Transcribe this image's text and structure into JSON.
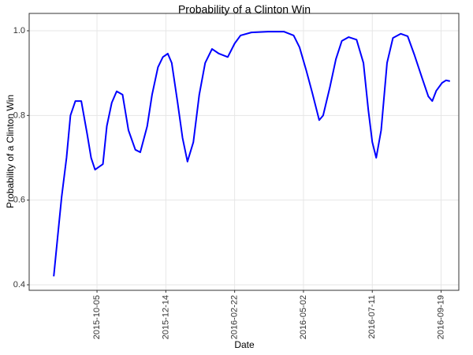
{
  "chart_data": {
    "type": "line",
    "title": "Probability of a Clinton Win",
    "x_label": "Date",
    "y_label": "Probability of a Clinton Win",
    "x": [
      "2015-08-22",
      "2015-08-26",
      "2015-08-30",
      "2015-09-04",
      "2015-09-08",
      "2015-09-13",
      "2015-09-19",
      "2015-09-25",
      "2015-09-29",
      "2015-10-03",
      "2015-10-11",
      "2015-10-15",
      "2015-10-20",
      "2015-10-25",
      "2015-10-31",
      "2015-11-06",
      "2015-11-13",
      "2015-11-18",
      "2015-11-25",
      "2015-11-30",
      "2015-12-06",
      "2015-12-11",
      "2015-12-16",
      "2015-12-20",
      "2015-12-26",
      "2015-12-31",
      "2016-01-05",
      "2016-01-11",
      "2016-01-17",
      "2016-01-23",
      "2016-01-30",
      "2016-02-06",
      "2016-02-15",
      "2016-02-22",
      "2016-02-28",
      "2016-03-10",
      "2016-03-27",
      "2016-04-12",
      "2016-04-22",
      "2016-04-28",
      "2016-05-05",
      "2016-05-11",
      "2016-05-18",
      "2016-05-22",
      "2016-05-29",
      "2016-06-04",
      "2016-06-10",
      "2016-06-17",
      "2016-06-25",
      "2016-07-02",
      "2016-07-07",
      "2016-07-11",
      "2016-07-15",
      "2016-07-20",
      "2016-07-26",
      "2016-08-01",
      "2016-08-09",
      "2016-08-16",
      "2016-08-23",
      "2016-08-31",
      "2016-09-06",
      "2016-09-10",
      "2016-09-14",
      "2016-09-20",
      "2016-09-24",
      "2016-09-28"
    ],
    "series": [
      {
        "name": "Probability of a Clinton Win",
        "color": "#0000ff",
        "values": [
          0.42,
          0.514,
          0.607,
          0.7,
          0.8,
          0.834,
          0.834,
          0.756,
          0.7,
          0.672,
          0.685,
          0.775,
          0.83,
          0.857,
          0.849,
          0.765,
          0.719,
          0.713,
          0.774,
          0.849,
          0.914,
          0.938,
          0.946,
          0.924,
          0.83,
          0.747,
          0.691,
          0.737,
          0.849,
          0.924,
          0.957,
          0.946,
          0.938,
          0.97,
          0.989,
          0.996,
          0.998,
          0.998,
          0.989,
          0.961,
          0.905,
          0.853,
          0.789,
          0.8,
          0.868,
          0.933,
          0.976,
          0.985,
          0.979,
          0.924,
          0.812,
          0.737,
          0.7,
          0.765,
          0.924,
          0.983,
          0.993,
          0.987,
          0.942,
          0.886,
          0.845,
          0.834,
          0.858,
          0.877,
          0.883,
          0.881
        ]
      }
    ],
    "xlim": [
      "2015-07-28",
      "2016-10-07"
    ],
    "xticks": [
      "2015-10-05",
      "2015-12-14",
      "2016-02-22",
      "2016-05-02",
      "2016-07-11",
      "2016-09-19"
    ],
    "ylim": [
      0.387,
      1.041
    ],
    "yticks": [
      0.4,
      0.6,
      0.8,
      {
        "value": 1,
        "label": "1.0"
      }
    ],
    "grid": true
  }
}
